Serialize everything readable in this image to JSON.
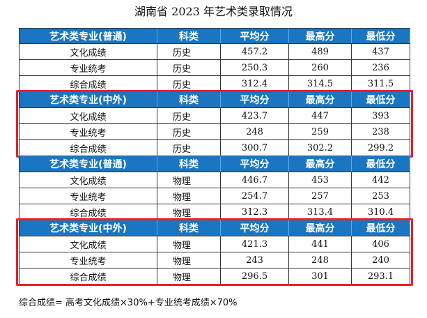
{
  "title": "湖南省 2023 年艺术类录取情况",
  "header_labels": {
    "subject": "科类",
    "avg": "平均分",
    "max": "最高分",
    "min": "最低分"
  },
  "sections": [
    {
      "name": "艺术类专业(普通)",
      "highlighted": false,
      "rows": [
        {
          "label": "文化成绩",
          "subject": "历史",
          "avg": "457.2",
          "max": "489",
          "min": "437"
        },
        {
          "label": "专业统考",
          "subject": "历史",
          "avg": "250.3",
          "max": "260",
          "min": "236"
        },
        {
          "label": "综合成绩",
          "subject": "历史",
          "avg": "312.4",
          "max": "314.5",
          "min": "311.5"
        }
      ]
    },
    {
      "name": "艺术类专业(中外)",
      "highlighted": true,
      "rows": [
        {
          "label": "文化成绩",
          "subject": "历史",
          "avg": "423.7",
          "max": "447",
          "min": "393"
        },
        {
          "label": "专业统考",
          "subject": "历史",
          "avg": "248",
          "max": "259",
          "min": "238"
        },
        {
          "label": "综合成绩",
          "subject": "历史",
          "avg": "300.7",
          "max": "302.2",
          "min": "299.2"
        }
      ]
    },
    {
      "name": "艺术类专业(普通)",
      "highlighted": false,
      "rows": [
        {
          "label": "文化成绩",
          "subject": "物理",
          "avg": "446.7",
          "max": "453",
          "min": "442"
        },
        {
          "label": "专业统考",
          "subject": "物理",
          "avg": "254.7",
          "max": "257",
          "min": "253"
        },
        {
          "label": "综合成绩",
          "subject": "物理",
          "avg": "312.3",
          "max": "313.4",
          "min": "310.4"
        }
      ]
    },
    {
      "name": "艺术类专业(中外)",
      "highlighted": true,
      "rows": [
        {
          "label": "文化成绩",
          "subject": "物理",
          "avg": "421.3",
          "max": "441",
          "min": "406"
        },
        {
          "label": "专业统考",
          "subject": "物理",
          "avg": "243",
          "max": "248",
          "min": "240"
        },
        {
          "label": "综合成绩",
          "subject": "物理",
          "avg": "296.5",
          "max": "301",
          "min": "293.1"
        }
      ]
    }
  ],
  "footnote": "综合成绩= 高考文化成绩×30%+专业统考成绩×70%",
  "colors": {
    "header_bg": "#1a76c2",
    "highlight_border": "#e8202a"
  }
}
